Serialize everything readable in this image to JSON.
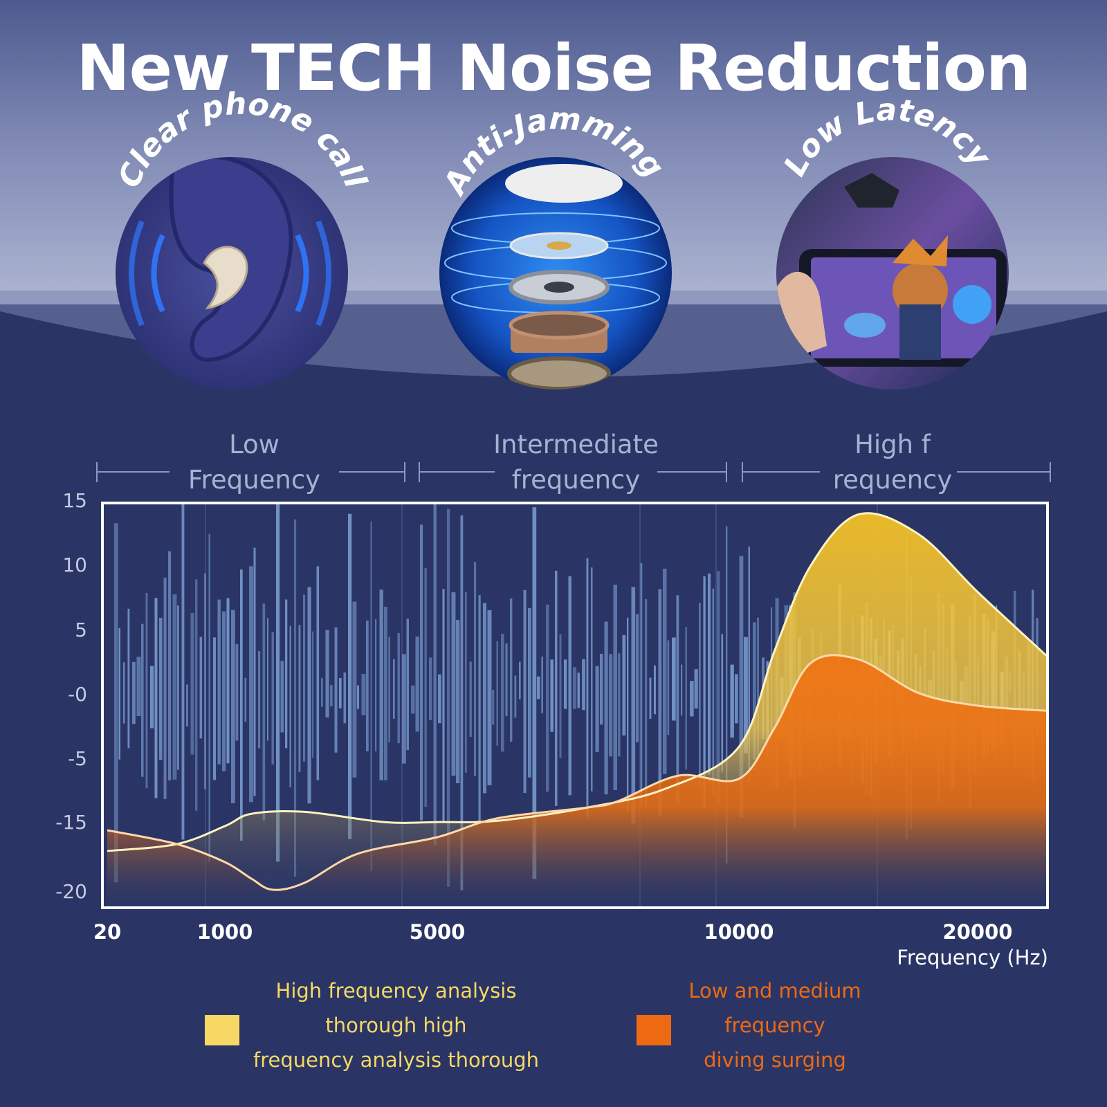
{
  "title": "New TECH Noise Reduction",
  "features": [
    {
      "label": "Clear phone call",
      "icon": "ear-earbud-icon"
    },
    {
      "label": "Anti-Jamming",
      "icon": "exploded-speaker-driver-icon"
    },
    {
      "label": "Low Latency",
      "icon": "mobile-gaming-icon"
    }
  ],
  "bands": [
    {
      "line1": "Low",
      "line2": "Frequency"
    },
    {
      "line1": "Intermediate",
      "line2": "frequency"
    },
    {
      "line1": "High f",
      "line2": "requency"
    }
  ],
  "legend": [
    {
      "lines": [
        "High frequency analysis",
        "thorough high",
        "frequency analysis thorough"
      ],
      "color": "#f7d865"
    },
    {
      "lines": [
        "Low and medium",
        "frequency",
        "diving surging"
      ],
      "color": "#ee6a12"
    }
  ],
  "colors": {
    "background": "#2a3566",
    "yellow_area": "#f7c531",
    "orange_area": "#ee6a12",
    "noise_bars": "#7fa3d6",
    "frame": "#ffffff"
  },
  "chart_data": {
    "type": "area",
    "title": "",
    "xlabel": "Frequency (Hz)",
    "ylabel": "",
    "y_ticks": [
      "15",
      "10",
      "5",
      "-0",
      "-5",
      "-15",
      "-20"
    ],
    "x_ticks": [
      "20",
      "1000",
      "5000",
      "10000",
      "20000"
    ],
    "series": [
      {
        "name": "High frequency analysis thorough high frequency analysis thorough",
        "color": "#f7c531",
        "x": [
          "20",
          "600",
          "1000",
          "1500",
          "2500",
          "4000",
          "5000",
          "6000",
          "7500",
          "8800",
          "10000",
          "11500",
          "13000",
          "15000",
          "17500",
          "20000",
          "22000"
        ],
        "y": [
          -17,
          -16.5,
          -15.2,
          -13.5,
          -13.2,
          -14.8,
          -14.8,
          -14.6,
          -12.5,
          -9.5,
          -4,
          3.5,
          10,
          14,
          12.5,
          8,
          3
        ]
      },
      {
        "name": "Low and medium frequency diving surging",
        "color": "#ee6a12",
        "x": [
          "20",
          "600",
          "1000",
          "1500",
          "1900",
          "2500",
          "3500",
          "5000",
          "6000",
          "7500",
          "8000",
          "9000",
          "10000",
          "11500",
          "13000",
          "15000",
          "17500",
          "20000",
          "22000"
        ],
        "y": [
          -15.5,
          -16.5,
          -17.8,
          -19,
          -19.8,
          -19.3,
          -17.2,
          -16,
          -14.2,
          -12.5,
          -11.5,
          -7.5,
          -8,
          -2.5,
          2.5,
          2.8,
          0.2,
          -0.8,
          -1.2
        ]
      }
    ],
    "background_noise": "vertical bars spread across 20–10000 Hz around -0, extending into the high band"
  }
}
